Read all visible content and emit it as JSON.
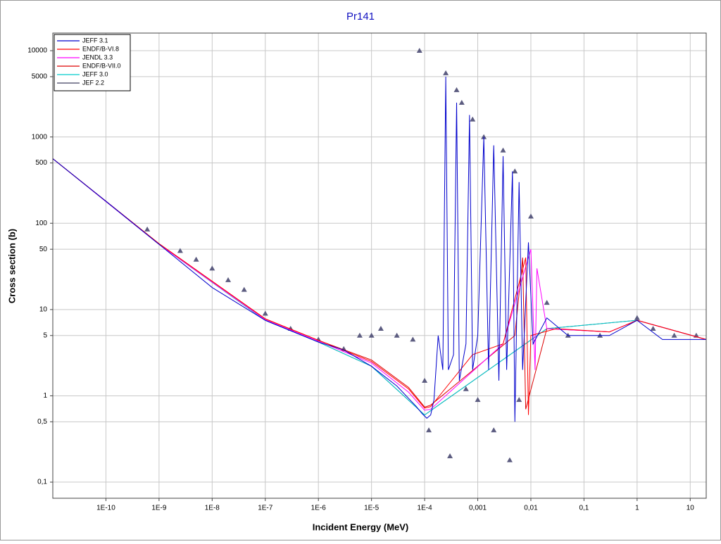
{
  "chart_data": {
    "type": "line",
    "title": "Pr141",
    "x_label": "Incident Energy (MeV)",
    "y_label": "Cross section (b)",
    "x_scale": "log",
    "y_scale": "log",
    "grid": true,
    "legend": "upper left",
    "xlim": [
      1e-11,
      20
    ],
    "ylim": [
      0.065,
      16000
    ],
    "xticks": [
      {
        "value": 1e-10,
        "label": "1E-10"
      },
      {
        "value": 1e-09,
        "label": "1E-9"
      },
      {
        "value": 1e-08,
        "label": "1E-8"
      },
      {
        "value": 1e-07,
        "label": "1E-7"
      },
      {
        "value": 1e-06,
        "label": "1E-6"
      },
      {
        "value": 1e-05,
        "label": "1E-5"
      },
      {
        "value": 0.0001,
        "label": "1E-4"
      },
      {
        "value": 0.001,
        "label": "0,001"
      },
      {
        "value": 0.01,
        "label": "0,01"
      },
      {
        "value": 0.1,
        "label": "0,1"
      },
      1,
      10
    ],
    "yticks": [
      {
        "value": 0.1,
        "label": "0,1"
      },
      {
        "value": 0.5,
        "label": "0,5"
      },
      1,
      5,
      10,
      50,
      100,
      500,
      1000,
      5000,
      10000
    ],
    "series": [
      {
        "name": "JEFF 3.1",
        "color": "#0000cc",
        "x": [
          1e-11,
          1e-10,
          1e-09,
          1e-08,
          1e-07,
          1e-06,
          3e-06,
          1e-05,
          3e-05,
          7e-05,
          9e-05,
          0.00011,
          0.00013,
          0.00015,
          0.00018,
          0.00022,
          0.00025,
          0.00028,
          0.00035,
          0.0004,
          0.00045,
          0.0006,
          0.0007,
          0.0008,
          0.001,
          0.0013,
          0.0016,
          0.002,
          0.0025,
          0.003,
          0.0035,
          0.0045,
          0.005,
          0.006,
          0.007,
          0.009,
          0.011,
          0.02,
          0.05,
          0.1,
          0.3,
          1,
          3,
          7,
          20
        ],
        "values": [
          560,
          180,
          57,
          18,
          7.5,
          4.2,
          3.4,
          2.2,
          1.3,
          0.75,
          0.62,
          0.55,
          0.6,
          0.9,
          5,
          2,
          5000,
          2,
          3,
          2500,
          1.5,
          4,
          1800,
          2,
          5,
          1000,
          2,
          800,
          1.5,
          600,
          2,
          400,
          0.5,
          300,
          2,
          60,
          4,
          8,
          5,
          5,
          5,
          7.5,
          4.5,
          4.5,
          4.5
        ]
      },
      {
        "name": "ENDF/B-VI.8",
        "color": "#ff0000",
        "x": [
          1e-11,
          1e-09,
          1e-07,
          1e-06,
          1e-05,
          5e-05,
          0.0001,
          0.00013,
          0.0008,
          0.003,
          0.008,
          0.009,
          0.01,
          0.03,
          0.3,
          1,
          20
        ],
        "values": [
          560,
          58,
          7.8,
          4.4,
          2.5,
          1.2,
          0.72,
          0.75,
          3,
          4,
          40,
          0.6,
          5,
          6,
          5.5,
          7.5,
          4.5
        ]
      },
      {
        "name": "JENDL 3.3",
        "color": "#ff00ff",
        "x": [
          1e-11,
          1e-09,
          1e-07,
          1e-06,
          1e-05,
          5e-05,
          0.0001,
          0.00013,
          0.003,
          0.01,
          0.012,
          0.013,
          0.02,
          0.3,
          1,
          20
        ],
        "values": [
          560,
          57,
          7.6,
          4.3,
          2.4,
          1.1,
          0.68,
          0.7,
          4,
          50,
          2,
          30,
          6,
          5.5,
          7.5,
          4.5
        ]
      },
      {
        "name": "ENDF/B-VII.0",
        "color": "#dd0000",
        "x": [
          1e-11,
          1e-09,
          1e-07,
          1e-06,
          1e-05,
          5e-05,
          0.0001,
          0.00013,
          0.005,
          0.007,
          0.008,
          0.02,
          0.3,
          1,
          20
        ],
        "values": [
          560,
          58,
          7.8,
          4.4,
          2.6,
          1.25,
          0.74,
          0.78,
          5,
          40,
          0.7,
          6,
          5.5,
          7.5,
          4.5
        ]
      },
      {
        "name": "JEFF 3.0",
        "color": "#00cccc",
        "x": [
          1e-11,
          1e-09,
          1e-07,
          1e-06,
          1e-05,
          0.0001,
          0.02,
          1,
          20
        ],
        "values": [
          560,
          57,
          7.5,
          4.2,
          2.2,
          0.6,
          6,
          7.5,
          4.5
        ]
      },
      {
        "name": "JEF 2.2",
        "color": "#404060",
        "x": [
          1e-11,
          1e-09,
          1e-07,
          1e-06,
          1e-05,
          0.0001,
          0.02,
          1,
          20
        ],
        "values": [
          560,
          57,
          7.5,
          4.2,
          2.2,
          0.6,
          6,
          7.5,
          4.5
        ]
      }
    ],
    "markers": {
      "color": "#5c5c80",
      "x": [
        6e-10,
        2.5e-09,
        5e-09,
        1e-08,
        2e-08,
        4e-08,
        1e-07,
        3e-07,
        1e-06,
        3e-06,
        6e-06,
        1e-05,
        1.5e-05,
        3e-05,
        6e-05,
        8e-05,
        0.0001,
        0.00012,
        0.00025,
        0.0003,
        0.0004,
        0.0005,
        0.0006,
        0.0008,
        0.001,
        0.0013,
        0.002,
        0.003,
        0.004,
        0.005,
        0.006,
        0.01,
        0.02,
        0.05,
        0.2,
        1,
        2,
        5,
        13
      ],
      "values": [
        85,
        48,
        38,
        30,
        22,
        17,
        9,
        6,
        4.5,
        3.5,
        5,
        5,
        6,
        5,
        4.5,
        10000,
        1.5,
        0.4,
        5500,
        0.2,
        3500,
        2500,
        1.2,
        1600,
        0.9,
        1000,
        0.4,
        700,
        0.18,
        400,
        0.9,
        120,
        12,
        5,
        5,
        8,
        6,
        5,
        5
      ]
    }
  }
}
